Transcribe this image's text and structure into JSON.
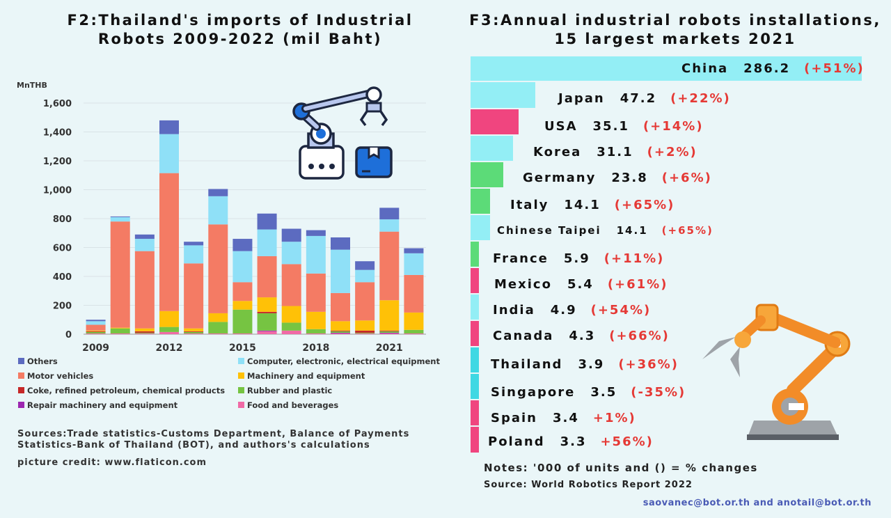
{
  "f2": {
    "title_line1": "F2:Thailand's imports of Industrial",
    "title_line2": "Robots 2009-2022 (mil Baht)",
    "unit": "MnTHB",
    "sources": "Sources:Trade statistics-Customs Department, Balance of Payments Statistics-Bank of Thailand (BOT), and authors's calculations",
    "credit": "picture credit: www.flaticon.com"
  },
  "f3": {
    "title_line1": "F3:Annual industrial robots installations,",
    "title_line2": "15 largest markets 2021",
    "notes": "Notes: '000 of units and () = % changes",
    "source": "Source: World Robotics Report 2022"
  },
  "contact": "saovanec@bot.or.th and anotail@bot.or.th",
  "colors": {
    "others": "#5c6bc0",
    "motor": "#f47b64",
    "coke": "#c62828",
    "repair": "#9c27b0",
    "computer": "#8fe0f7",
    "machinery": "#ffc107",
    "rubber": "#76c442",
    "food": "#f06aa6"
  },
  "chart_data": [
    {
      "type": "bar",
      "stacked": true,
      "ylabel": "MnTHB",
      "ylim": [
        0,
        1600
      ],
      "yticks": [
        "0",
        "200",
        "400",
        "600",
        "800",
        "1,000",
        "1,200",
        "1,400",
        "1,600"
      ],
      "x": [
        2009,
        2010,
        2011,
        2012,
        2013,
        2014,
        2015,
        2016,
        2017,
        2018,
        2019,
        2020,
        2021,
        2022
      ],
      "xtick_labels": [
        "2009",
        "2012",
        "2015",
        "2018",
        "2021"
      ],
      "legend": "bottom",
      "series": [
        {
          "name": "Food and beverages",
          "color_key": "food",
          "values": [
            5,
            5,
            5,
            15,
            5,
            5,
            5,
            20,
            25,
            5,
            5,
            5,
            5,
            5
          ]
        },
        {
          "name": "Repair machinery and equipment",
          "color_key": "repair",
          "values": [
            0,
            0,
            0,
            0,
            0,
            0,
            0,
            5,
            0,
            0,
            5,
            0,
            5,
            0
          ]
        },
        {
          "name": "Rubber and plastic",
          "color_key": "rubber",
          "values": [
            10,
            35,
            5,
            35,
            10,
            80,
            165,
            120,
            55,
            30,
            10,
            5,
            10,
            25
          ]
        },
        {
          "name": "Coke, refined petroleum, chemical products",
          "color_key": "coke",
          "values": [
            5,
            0,
            10,
            0,
            5,
            0,
            0,
            10,
            0,
            0,
            5,
            15,
            5,
            0
          ]
        },
        {
          "name": "Machinery and equipment",
          "color_key": "machinery",
          "values": [
            5,
            5,
            20,
            110,
            20,
            60,
            60,
            100,
            115,
            120,
            65,
            70,
            210,
            120
          ]
        },
        {
          "name": "Motor vehicles",
          "color_key": "motor",
          "values": [
            40,
            735,
            535,
            955,
            450,
            615,
            130,
            285,
            290,
            265,
            195,
            265,
            475,
            260
          ]
        },
        {
          "name": "Computer, electronic, electrical equipment",
          "color_key": "computer",
          "values": [
            25,
            30,
            85,
            270,
            125,
            195,
            215,
            185,
            155,
            260,
            300,
            85,
            85,
            150
          ]
        },
        {
          "name": "Others",
          "color_key": "others",
          "values": [
            10,
            5,
            30,
            95,
            25,
            50,
            85,
            110,
            90,
            40,
            85,
            60,
            80,
            35
          ]
        }
      ]
    },
    {
      "type": "bar",
      "orientation": "horizontal",
      "unit": "'000 of units",
      "categories": [
        "China",
        "Japan",
        "USA",
        "Korea",
        "Germany",
        "Italy",
        "Chinese Taipei",
        "France",
        "Mexico",
        "India",
        "Canada",
        "Thailand",
        "Singapore",
        "Spain",
        "Poland"
      ],
      "values": [
        286.2,
        47.2,
        35.1,
        31.1,
        23.8,
        14.1,
        14.1,
        5.9,
        5.4,
        4.9,
        4.3,
        3.9,
        3.5,
        3.4,
        3.3
      ],
      "value_labels": [
        "286.2",
        "47.2",
        "35.1",
        "31.1",
        "23.8",
        "14.1",
        "14.1",
        "5.9",
        "5.4",
        "4.9",
        "4.3",
        "3.9",
        "3.5",
        "3.4",
        "3.3"
      ],
      "changes": [
        "(+51%)",
        "(+22%)",
        "(+14%)",
        "(+2%)",
        "(+6%)",
        "(+65%)",
        "(+65%)",
        "(+11%)",
        "(+61%)",
        "(+54%)",
        "(+66%)",
        "(+36%)",
        "(-35%)",
        "+1%)",
        "+56%)"
      ],
      "bar_colors": [
        "#93eef5",
        "#93eef5",
        "#f0457f",
        "#93eef5",
        "#5cdb78",
        "#5cdb78",
        "#93eef5",
        "#5cdb78",
        "#f0457f",
        "#93eef5",
        "#f0457f",
        "#3fd8e3",
        "#3fd8e3",
        "#f0457f",
        "#f0457f"
      ]
    }
  ]
}
